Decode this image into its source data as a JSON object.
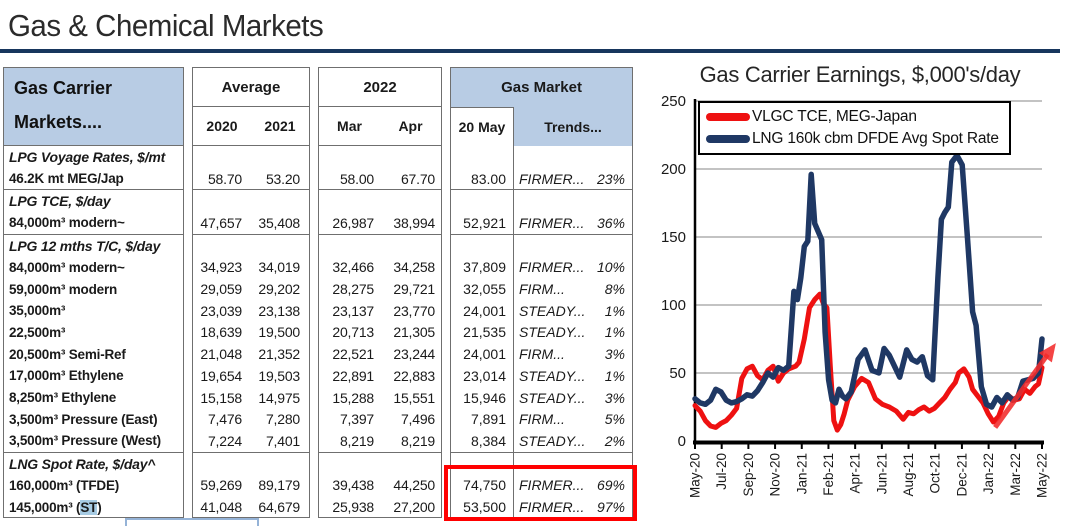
{
  "page_title": "Gas & Chemical Markets",
  "colors": {
    "header_fill": "#b8cce4",
    "rule": "#17365d",
    "red": "#ff0000",
    "navy": "#1f3864",
    "grid": "#c3c3c3",
    "st_highlight": "#a6cbe3",
    "partial_box_border": "#95b3d7"
  },
  "table": {
    "header": {
      "col1_line1": "Gas Carrier",
      "col1_line2": "Markets....",
      "average": "Average",
      "y2022": "2022",
      "gas_market": "Gas Market",
      "y2020": "2020",
      "y2021": "2021",
      "mar": "Mar",
      "apr": "Apr",
      "may": "20 May",
      "trends": "Trends..."
    },
    "rows": [
      {
        "type": "section",
        "label": "LPG Voyage Rates, $/mt"
      },
      {
        "type": "item",
        "label": "46.2K mt MEG/Jap",
        "y2020": "58.70",
        "y2021": "53.20",
        "mar": "58.00",
        "apr": "67.70",
        "may20": "83.00",
        "trend": "FIRMER...",
        "pct": "23%"
      },
      {
        "type": "section",
        "label": "LPG TCE, $/day",
        "sep": true
      },
      {
        "type": "item",
        "label": "84,000m³ modern~",
        "y2020": "47,657",
        "y2021": "35,408",
        "mar": "26,987",
        "apr": "38,994",
        "may20": "52,921",
        "trend": "FIRMER...",
        "pct": "36%"
      },
      {
        "type": "section",
        "label": "LPG 12 mths T/C, $/day",
        "sep": true
      },
      {
        "type": "item",
        "label": "84,000m³ modern~",
        "y2020": "34,923",
        "y2021": "34,019",
        "mar": "32,466",
        "apr": "34,258",
        "may20": "37,809",
        "trend": "FIRMER...",
        "pct": "10%"
      },
      {
        "type": "item",
        "label": "59,000m³ modern",
        "y2020": "29,059",
        "y2021": "29,202",
        "mar": "28,275",
        "apr": "29,721",
        "may20": "32,055",
        "trend": "FIRM...",
        "pct": "8%"
      },
      {
        "type": "item",
        "label": "35,000m³",
        "y2020": "23,039",
        "y2021": "23,138",
        "mar": "23,137",
        "apr": "23,770",
        "may20": "24,001",
        "trend": "STEADY...",
        "pct": "1%"
      },
      {
        "type": "item",
        "label": "22,500m³",
        "y2020": "18,639",
        "y2021": "19,500",
        "mar": "20,713",
        "apr": "21,305",
        "may20": "21,535",
        "trend": "STEADY...",
        "pct": "1%"
      },
      {
        "type": "item",
        "label": "20,500m³ Semi-Ref",
        "y2020": "21,048",
        "y2021": "21,352",
        "mar": "22,521",
        "apr": "23,244",
        "may20": "24,001",
        "trend": "FIRM...",
        "pct": "3%"
      },
      {
        "type": "item",
        "label": "17,000m³ Ethylene",
        "y2020": "19,654",
        "y2021": "19,503",
        "mar": "22,891",
        "apr": "22,883",
        "may20": "23,014",
        "trend": "STEADY...",
        "pct": "1%"
      },
      {
        "type": "item",
        "label": "8,250m³ Ethylene",
        "y2020": "15,158",
        "y2021": "14,975",
        "mar": "15,288",
        "apr": "15,551",
        "may20": "15,946",
        "trend": "STEADY...",
        "pct": "3%"
      },
      {
        "type": "item",
        "label": "3,500m³ Pressure (East)",
        "y2020": "7,476",
        "y2021": "7,280",
        "mar": "7,397",
        "apr": "7,496",
        "may20": "7,891",
        "trend": "FIRM...",
        "pct": "5%"
      },
      {
        "type": "item",
        "label": "3,500m³ Pressure (West)",
        "y2020": "7,224",
        "y2021": "7,401",
        "mar": "8,219",
        "apr": "8,219",
        "may20": "8,384",
        "trend": "STEADY...",
        "pct": "2%"
      },
      {
        "type": "section",
        "label": "LNG Spot Rate, $/day^",
        "sep": true
      },
      {
        "type": "item",
        "label": "160,000m³ (TFDE)",
        "y2020": "59,269",
        "y2021": "89,179",
        "mar": "39,438",
        "apr": "44,250",
        "may20": "74,750",
        "trend": "FIRMER...",
        "pct": "69%"
      },
      {
        "type": "item",
        "label_parts": [
          "145,000m³ (",
          "ST",
          ")"
        ],
        "y2020": "41,048",
        "y2021": "64,679",
        "mar": "25,938",
        "apr": "27,200",
        "may20": "53,500",
        "trend": "FIRMER...",
        "pct": "97%"
      }
    ],
    "highlight_rows_box": "20 May and Trends values for 160,000m³ (TFDE) and 145,000m³ (ST)"
  },
  "chart_data": {
    "type": "line",
    "title": "Gas Carrier Earnings, $,000's/day",
    "ylabel": "",
    "xlabel": "",
    "ylim": [
      0,
      250
    ],
    "yticks": [
      0,
      50,
      100,
      150,
      200,
      250
    ],
    "grid": true,
    "legend_position": "top-left-boxed",
    "x_tick_labels": [
      "May-20",
      "Jul-20",
      "Sep-20",
      "Nov-20",
      "Jan-21",
      "Feb-21",
      "Apr-21",
      "Jun-21",
      "Aug-21",
      "Oct-21",
      "Dec-21",
      "Jan-22",
      "Mar-22",
      "May-22"
    ],
    "series": [
      {
        "name": "VLGC TCE, MEG-Japan",
        "color": "#ee1111",
        "width": 5,
        "points": [
          [
            0.0,
            26
          ],
          [
            0.015,
            22
          ],
          [
            0.03,
            15
          ],
          [
            0.045,
            11
          ],
          [
            0.06,
            10
          ],
          [
            0.075,
            13
          ],
          [
            0.09,
            15
          ],
          [
            0.105,
            19
          ],
          [
            0.12,
            24
          ],
          [
            0.135,
            46
          ],
          [
            0.15,
            53
          ],
          [
            0.165,
            55
          ],
          [
            0.18,
            48
          ],
          [
            0.195,
            45
          ],
          [
            0.21,
            52
          ],
          [
            0.225,
            55
          ],
          [
            0.24,
            44
          ],
          [
            0.255,
            50
          ],
          [
            0.27,
            53
          ],
          [
            0.29,
            55
          ],
          [
            0.3,
            58
          ],
          [
            0.315,
            75
          ],
          [
            0.33,
            98
          ],
          [
            0.345,
            104
          ],
          [
            0.36,
            108
          ],
          [
            0.37,
            101
          ],
          [
            0.38,
            98
          ],
          [
            0.39,
            55
          ],
          [
            0.4,
            15
          ],
          [
            0.41,
            8
          ],
          [
            0.42,
            12
          ],
          [
            0.43,
            20
          ],
          [
            0.44,
            30
          ],
          [
            0.46,
            40
          ],
          [
            0.48,
            46
          ],
          [
            0.5,
            43
          ],
          [
            0.52,
            31
          ],
          [
            0.54,
            27
          ],
          [
            0.56,
            25
          ],
          [
            0.58,
            22
          ],
          [
            0.6,
            16
          ],
          [
            0.615,
            21
          ],
          [
            0.63,
            20
          ],
          [
            0.645,
            23
          ],
          [
            0.66,
            25
          ],
          [
            0.675,
            22
          ],
          [
            0.69,
            24
          ],
          [
            0.705,
            28
          ],
          [
            0.72,
            32
          ],
          [
            0.735,
            38
          ],
          [
            0.75,
            43
          ],
          [
            0.76,
            50
          ],
          [
            0.775,
            53
          ],
          [
            0.79,
            47
          ],
          [
            0.8,
            38
          ],
          [
            0.815,
            33
          ],
          [
            0.83,
            28
          ],
          [
            0.845,
            20
          ],
          [
            0.86,
            14
          ],
          [
            0.875,
            18
          ],
          [
            0.89,
            28
          ],
          [
            0.905,
            33
          ],
          [
            0.92,
            30
          ],
          [
            0.935,
            31
          ],
          [
            0.95,
            38
          ],
          [
            0.965,
            35
          ],
          [
            0.98,
            40
          ],
          [
            0.99,
            42
          ],
          [
            1.0,
            54
          ]
        ]
      },
      {
        "name": "LNG 160k cbm DFDE Avg Spot Rate",
        "color": "#1f3864",
        "width": 5.5,
        "points": [
          [
            0.0,
            31
          ],
          [
            0.015,
            28
          ],
          [
            0.03,
            27
          ],
          [
            0.045,
            30
          ],
          [
            0.06,
            38
          ],
          [
            0.075,
            36
          ],
          [
            0.09,
            30
          ],
          [
            0.105,
            28
          ],
          [
            0.12,
            29
          ],
          [
            0.135,
            31
          ],
          [
            0.15,
            34
          ],
          [
            0.165,
            33
          ],
          [
            0.18,
            37
          ],
          [
            0.195,
            43
          ],
          [
            0.21,
            50
          ],
          [
            0.225,
            47
          ],
          [
            0.24,
            54
          ],
          [
            0.255,
            52
          ],
          [
            0.27,
            55
          ],
          [
            0.285,
            110
          ],
          [
            0.295,
            104
          ],
          [
            0.305,
            120
          ],
          [
            0.315,
            143
          ],
          [
            0.325,
            147
          ],
          [
            0.335,
            196
          ],
          [
            0.345,
            160
          ],
          [
            0.355,
            154
          ],
          [
            0.365,
            148
          ],
          [
            0.375,
            80
          ],
          [
            0.385,
            45
          ],
          [
            0.395,
            30
          ],
          [
            0.405,
            28
          ],
          [
            0.415,
            38
          ],
          [
            0.425,
            33
          ],
          [
            0.435,
            31
          ],
          [
            0.45,
            36
          ],
          [
            0.47,
            60
          ],
          [
            0.49,
            67
          ],
          [
            0.51,
            52
          ],
          [
            0.53,
            50
          ],
          [
            0.545,
            68
          ],
          [
            0.56,
            63
          ],
          [
            0.575,
            55
          ],
          [
            0.59,
            47
          ],
          [
            0.61,
            67
          ],
          [
            0.625,
            60
          ],
          [
            0.64,
            58
          ],
          [
            0.655,
            62
          ],
          [
            0.67,
            48
          ],
          [
            0.685,
            45
          ],
          [
            0.7,
            120
          ],
          [
            0.71,
            163
          ],
          [
            0.72,
            168
          ],
          [
            0.73,
            172
          ],
          [
            0.74,
            205
          ],
          [
            0.755,
            210
          ],
          [
            0.77,
            203
          ],
          [
            0.785,
            150
          ],
          [
            0.8,
            95
          ],
          [
            0.81,
            85
          ],
          [
            0.825,
            40
          ],
          [
            0.84,
            27
          ],
          [
            0.855,
            25
          ],
          [
            0.87,
            32
          ],
          [
            0.885,
            28
          ],
          [
            0.9,
            34
          ],
          [
            0.915,
            30
          ],
          [
            0.93,
            32
          ],
          [
            0.945,
            44
          ],
          [
            0.96,
            45
          ],
          [
            0.975,
            46
          ],
          [
            0.99,
            50
          ],
          [
            1.0,
            75
          ]
        ]
      }
    ],
    "annotation_arrow": {
      "from_frac": [
        0.865,
        10
      ],
      "to_frac": [
        1.04,
        72
      ],
      "color": "#f22b2b",
      "opacity": 0.88
    }
  }
}
